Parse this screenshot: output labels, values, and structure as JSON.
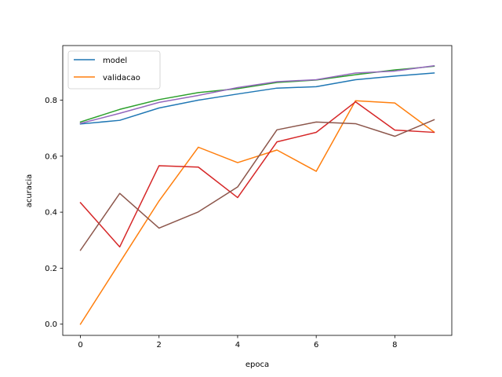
{
  "chart_data": {
    "type": "line",
    "title": "",
    "xlabel": "epoca",
    "ylabel": "acuracia",
    "x": [
      0,
      1,
      2,
      3,
      4,
      5,
      6,
      7,
      8,
      9
    ],
    "xlim": [
      -0.45,
      9.45
    ],
    "ylim": [
      -0.04,
      0.995
    ],
    "xticks": [
      "0",
      "2",
      "4",
      "6",
      "8"
    ],
    "xtick_values": [
      0,
      2,
      4,
      6,
      8
    ],
    "yticks": [
      "0.0",
      "0.2",
      "0.4",
      "0.6",
      "0.8"
    ],
    "ytick_values": [
      0.0,
      0.2,
      0.4,
      0.6,
      0.8
    ],
    "grid": false,
    "legend_placement": "top-left",
    "series": [
      {
        "name": "model",
        "color": "#1f77b4",
        "values": [
          0.715,
          0.728,
          0.772,
          0.8,
          0.822,
          0.843,
          0.848,
          0.873,
          0.886,
          0.897
        ]
      },
      {
        "name": "validacao",
        "color": "#ff7f0e",
        "values": [
          0.0,
          0.22,
          0.44,
          0.632,
          0.577,
          0.622,
          0.546,
          0.798,
          0.79,
          0.686
        ]
      },
      {
        "color": "#2ca02c",
        "values": [
          0.722,
          0.767,
          0.802,
          0.827,
          0.841,
          0.863,
          0.872,
          0.891,
          0.908,
          0.921
        ]
      },
      {
        "color": "#d62728",
        "values": [
          0.434,
          0.276,
          0.566,
          0.561,
          0.452,
          0.651,
          0.685,
          0.794,
          0.693,
          0.685
        ]
      },
      {
        "color": "#9467bd",
        "values": [
          0.717,
          0.753,
          0.792,
          0.817,
          0.845,
          0.866,
          0.873,
          0.897,
          0.904,
          0.923
        ]
      },
      {
        "color": "#8c564b",
        "values": [
          0.264,
          0.467,
          0.343,
          0.401,
          0.49,
          0.694,
          0.722,
          0.716,
          0.671,
          0.73
        ]
      }
    ]
  }
}
